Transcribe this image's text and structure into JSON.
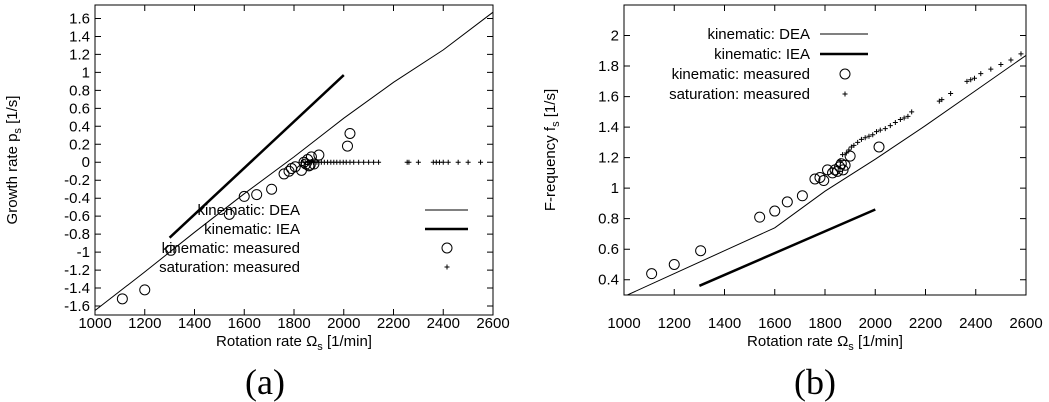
{
  "chart_data": [
    {
      "type": "line",
      "panel_label": "(a)",
      "xlabel": "Rotation rate Ω",
      "xlabel_sub": "s",
      "xlabel_unit": " [1/min]",
      "ylabel": "Growth rate p",
      "ylabel_sub": "s",
      "ylabel_unit": " [1/s]",
      "xlim": [
        1000,
        2600
      ],
      "ylim": [
        -1.7,
        1.75
      ],
      "x_ticks": [
        1000,
        1200,
        1400,
        1600,
        1800,
        2000,
        2200,
        2400,
        2600
      ],
      "x_tick_labels": [
        "1000",
        "1200",
        "1400",
        "1600",
        "1800",
        "2000",
        "2200",
        "2400",
        "2600"
      ],
      "y_ticks": [
        -1.6,
        -1.4,
        -1.2,
        -1,
        -0.8,
        -0.6,
        -0.4,
        -0.2,
        0,
        0.2,
        0.4,
        0.6,
        0.8,
        1,
        1.2,
        1.4,
        1.6
      ],
      "y_tick_labels": [
        "-1.6",
        "-1.4",
        "-1.2",
        "-1",
        "-0.8",
        "-0.6",
        "-0.4",
        "-0.2",
        "0",
        "0.2",
        "0.4",
        "0.6",
        "0.8",
        "1",
        "1.2",
        "1.4",
        "1.6"
      ],
      "grid": false,
      "legend_position": "bottom-right",
      "series": [
        {
          "name": "kinematic: DEA",
          "style": "thin-line",
          "x": [
            1000,
            1200,
            1400,
            1600,
            1800,
            2000,
            2200,
            2400,
            2600
          ],
          "y": [
            -1.65,
            -1.22,
            -0.78,
            -0.35,
            0.06,
            0.49,
            0.89,
            1.25,
            1.67
          ]
        },
        {
          "name": "kinematic: IEA",
          "style": "thick-line",
          "x": [
            1300,
            2000
          ],
          "y": [
            -0.84,
            0.97
          ]
        },
        {
          "name": "kinematic: measured",
          "style": "circle",
          "x": [
            1110,
            1200,
            1305,
            1540,
            1600,
            1650,
            1710,
            1760,
            1780,
            1790,
            1805,
            1830,
            1840,
            1848,
            1855,
            1860,
            1865,
            1870,
            1880,
            1900,
            2015,
            2025
          ],
          "y": [
            -1.52,
            -1.42,
            -0.98,
            -0.58,
            -0.38,
            -0.36,
            -0.3,
            -0.13,
            -0.1,
            -0.07,
            -0.05,
            -0.09,
            0.0,
            -0.02,
            0.03,
            -0.04,
            -0.03,
            0.06,
            -0.02,
            0.08,
            0.18,
            0.32
          ]
        },
        {
          "name": "saturation: measured",
          "style": "plus",
          "x": [
            1830,
            1845,
            1855,
            1862,
            1870,
            1878,
            1885,
            1892,
            1900,
            1910,
            1922,
            1935,
            1948,
            1960,
            1972,
            1985,
            1998,
            2010,
            2025,
            2040,
            2060,
            2080,
            2100,
            2120,
            2140,
            2255,
            2262,
            2300,
            2360,
            2372,
            2385,
            2400,
            2420,
            2460,
            2500,
            2550
          ],
          "y": [
            0,
            0,
            0,
            0,
            0,
            0,
            0,
            0,
            0,
            0,
            0,
            0,
            0,
            0,
            0,
            0,
            0,
            0,
            0,
            0,
            0,
            0,
            0,
            0,
            0,
            0,
            0,
            0,
            0,
            0,
            0,
            0,
            0,
            0,
            0,
            0
          ]
        }
      ]
    },
    {
      "type": "line",
      "panel_label": "(b)",
      "xlabel": "Rotation rate Ω",
      "xlabel_sub": "s",
      "xlabel_unit": " [1/min]",
      "ylabel": "F-requency f",
      "ylabel_sub": "s",
      "ylabel_unit": " [1/s]",
      "xlim": [
        1000,
        2600
      ],
      "ylim": [
        0.3,
        2.2
      ],
      "x_ticks": [
        1000,
        1200,
        1400,
        1600,
        1800,
        2000,
        2200,
        2400,
        2600
      ],
      "x_tick_labels": [
        "1000",
        "1200",
        "1400",
        "1600",
        "1800",
        "2000",
        "2200",
        "2400",
        "2600"
      ],
      "y_ticks": [
        0.4,
        0.6,
        0.8,
        1,
        1.2,
        1.4,
        1.6,
        1.8,
        2
      ],
      "y_tick_labels": [
        "0.4",
        "0.6",
        "0.8",
        "1",
        "1.2",
        "1.4",
        "1.6",
        "1.8",
        "2"
      ],
      "grid": false,
      "legend_position": "top-left",
      "series": [
        {
          "name": "kinematic: DEA",
          "style": "thin-line",
          "x": [
            1000,
            1200,
            1400,
            1600,
            1800,
            2000,
            2200,
            2400,
            2600
          ],
          "y": [
            0.29,
            0.44,
            0.59,
            0.74,
            0.98,
            1.19,
            1.41,
            1.64,
            1.87
          ]
        },
        {
          "name": "kinematic: IEA",
          "style": "thick-line",
          "x": [
            1300,
            2000
          ],
          "y": [
            0.36,
            0.86
          ]
        },
        {
          "name": "kinematic: measured",
          "style": "circle",
          "x": [
            1110,
            1200,
            1305,
            1540,
            1600,
            1650,
            1710,
            1760,
            1780,
            1795,
            1810,
            1830,
            1840,
            1850,
            1858,
            1865,
            1872,
            1880,
            1900,
            2015
          ],
          "y": [
            0.44,
            0.5,
            0.59,
            0.81,
            0.85,
            0.91,
            0.95,
            1.06,
            1.07,
            1.05,
            1.12,
            1.1,
            1.12,
            1.11,
            1.14,
            1.16,
            1.12,
            1.15,
            1.21,
            1.27
          ]
        },
        {
          "name": "saturation: measured",
          "style": "plus",
          "x": [
            1860,
            1870,
            1885,
            1895,
            1905,
            1915,
            1930,
            1945,
            1960,
            1975,
            1990,
            2005,
            2020,
            2040,
            2060,
            2080,
            2100,
            2115,
            2130,
            2145,
            2255,
            2265,
            2300,
            2365,
            2380,
            2395,
            2420,
            2460,
            2500,
            2540,
            2580
          ],
          "y": [
            1.18,
            1.22,
            1.23,
            1.25,
            1.27,
            1.28,
            1.3,
            1.32,
            1.33,
            1.34,
            1.35,
            1.37,
            1.38,
            1.39,
            1.41,
            1.43,
            1.45,
            1.46,
            1.47,
            1.5,
            1.57,
            1.58,
            1.62,
            1.7,
            1.71,
            1.72,
            1.75,
            1.78,
            1.81,
            1.84,
            1.88
          ]
        }
      ]
    }
  ]
}
